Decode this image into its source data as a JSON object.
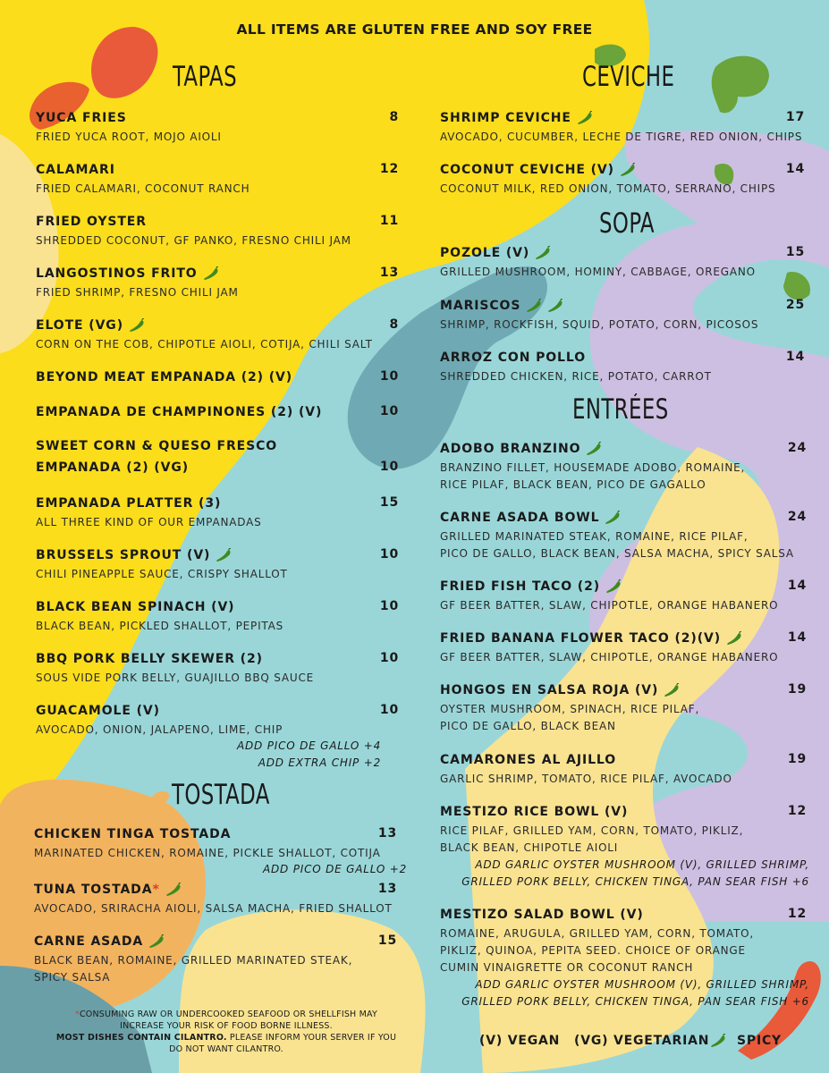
{
  "header": "ALL ITEMS ARE GLUTEN FREE AND SOY FREE",
  "colors": {
    "background_teal": "#9ad6d8",
    "yellow": "#fbdd1c",
    "lavender": "#cdbfe1",
    "pale_yellow": "#f9e391",
    "orange": "#f2b35f",
    "red_orange": "#e95a3a",
    "green": "#6aa43a",
    "pepper_green": "#3f8a1f"
  },
  "icons": {
    "spicy": "green-chili-pepper-icon"
  },
  "sections": {
    "tapas": {
      "title": "TAPAS",
      "items": [
        {
          "name": "YUCA FRIES",
          "desc": "FRIED YUCA ROOT, MOJO AIOLI",
          "price": "8"
        },
        {
          "name": "CALAMARI",
          "desc": "FRIED CALAMARI, COCONUT RANCH",
          "price": "12"
        },
        {
          "name": "FRIED OYSTER",
          "desc": "SHREDDED COCONUT, GF PANKO, FRESNO CHILI JAM",
          "price": "11"
        },
        {
          "name": "LANGOSTINOS FRITO",
          "desc": "FRIED SHRIMP, FRESNO CHILI JAM",
          "price": "13",
          "spicy": 1
        },
        {
          "name": "ELOTE (VG)",
          "desc": "CORN ON THE COB, CHIPOTLE AIOLI, COTIJA, CHILI SALT",
          "price": "8",
          "spicy": 1
        },
        {
          "name": "BEYOND MEAT EMPANADA (2) (V)",
          "desc": "",
          "price": "10"
        },
        {
          "name": "EMPANADA DE CHAMPINONES (2) (V)",
          "desc": "",
          "price": "10"
        },
        {
          "name": "SWEET CORN & QUESO FRESCO",
          "name2": "EMPANADA (2) (VG)",
          "desc": "",
          "price": "10"
        },
        {
          "name": "EMPANADA PLATTER (3)",
          "desc": "ALL THREE KIND OF OUR EMPANADAS",
          "price": "15"
        },
        {
          "name": "BRUSSELS SPROUT (V)",
          "desc": "CHILI PINEAPPLE SAUCE, CRISPY SHALLOT",
          "price": "10",
          "spicy": 1
        },
        {
          "name": "BLACK BEAN SPINACH (V)",
          "desc": "BLACK BEAN, PICKLED SHALLOT, PEPITAS",
          "price": "10"
        },
        {
          "name": "BBQ PORK BELLY SKEWER (2)",
          "desc": "SOUS VIDE PORK BELLY, GUAJILLO BBQ SAUCE",
          "price": "10"
        },
        {
          "name": "GUACAMOLE (V)",
          "desc": "AVOCADO, ONION, JALAPENO, LIME, CHIP",
          "price": "10",
          "addons": [
            "ADD PICO DE GALLO +4",
            "ADD EXTRA CHIP +2"
          ]
        }
      ]
    },
    "tostada": {
      "title": "TOSTADA",
      "items": [
        {
          "name": "CHICKEN TINGA TOSTADA",
          "desc": "MARINATED CHICKEN, ROMAINE, PICKLE SHALLOT, COTIJA",
          "price": "13",
          "addons": [
            "ADD PICO DE GALLO +2"
          ]
        },
        {
          "name": "TUNA TOSTADA",
          "marker": "*",
          "desc": "AVOCADO, SRIRACHA AIOLI, SALSA MACHA, FRIED SHALLOT",
          "price": "13",
          "spicy": 1
        },
        {
          "name": "CARNE ASADA",
          "desc": "BLACK BEAN, ROMAINE, GRILLED MARINATED STEAK,",
          "desc2": "SPICY SALSA",
          "price": "15",
          "spicy": 1
        }
      ]
    },
    "ceviche": {
      "title": "CEVICHE",
      "items": [
        {
          "name": "SHRIMP CEVICHE",
          "desc": "AVOCADO, CUCUMBER, LECHE DE TIGRE, RED ONION, CHIPS",
          "price": "17",
          "spicy": 1
        },
        {
          "name": "COCONUT CEVICHE (V)",
          "desc": "COCONUT MILK, RED ONION, TOMATO, SERRANO, CHIPS",
          "price": "14",
          "spicy": 1
        }
      ]
    },
    "sopa": {
      "title": "SOPA",
      "items": [
        {
          "name": "POZOLE (V)",
          "desc": "GRILLED MUSHROOM, HOMINY, CABBAGE, OREGANO",
          "price": "15",
          "spicy": 1
        },
        {
          "name": "MARISCOS",
          "desc": "SHRIMP, ROCKFISH, SQUID, POTATO, CORN, PICOSOS",
          "price": "25",
          "spicy": 2
        },
        {
          "name": "ARROZ CON POLLO",
          "desc": "SHREDDED CHICKEN, RICE, POTATO, CARROT",
          "price": "14"
        }
      ]
    },
    "entrees": {
      "title": "ENTRÉES",
      "items": [
        {
          "name": "ADOBO BRANZINO",
          "desc": "BRANZINO FILLET, HOUSEMADE ADOBO, ROMAINE,",
          "desc2": "RICE PILAF, BLACK BEAN, PICO DE GAGALLO",
          "price": "24",
          "spicy": 1
        },
        {
          "name": "CARNE ASADA BOWL",
          "desc": "GRILLED MARINATED STEAK, ROMAINE, RICE PILAF,",
          "desc2": "PICO DE GALLO, BLACK BEAN, SALSA MACHA, SPICY SALSA",
          "price": "24",
          "spicy": 1
        },
        {
          "name": "FRIED FISH TACO (2)",
          "desc": "GF BEER BATTER, SLAW, CHIPOTLE, ORANGE HABANERO",
          "price": "14",
          "spicy": 1
        },
        {
          "name": "FRIED BANANA FLOWER TACO (2)(V)",
          "desc": "GF BEER BATTER, SLAW, CHIPOTLE, ORANGE HABANERO",
          "price": "14",
          "spicy": 1
        },
        {
          "name": "HONGOS EN SALSA ROJA (V)",
          "desc": "OYSTER MUSHROOM, SPINACH, RICE PILAF,",
          "desc2": "PICO DE GALLO, BLACK BEAN",
          "price": "19",
          "spicy": 1
        },
        {
          "name": "CAMARONES AL AJILLO",
          "desc": "GARLIC SHRIMP, TOMATO, RICE PILAF, AVOCADO",
          "price": "19"
        },
        {
          "name": "MESTIZO RICE BOWL (V)",
          "desc": "RICE PILAF, GRILLED YAM, CORN, TOMATO, PIKLIZ,",
          "desc2": "BLACK BEAN, CHIPOTLE AIOLI",
          "price": "12",
          "addons": [
            "ADD GARLIC OYSTER MUSHROOM (V), GRILLED SHRIMP,",
            "GRILLED PORK BELLY, CHICKEN TINGA, PAN SEAR FISH +6"
          ]
        },
        {
          "name": "MESTIZO SALAD BOWL (V)",
          "desc": "ROMAINE, ARUGULA, GRILLED YAM, CORN, TOMATO,",
          "desc2": "PIKLIZ, QUINOA, PEPITA SEED. CHOICE OF ORANGE",
          "desc3": "CUMIN VINAIGRETTE OR COCONUT RANCH",
          "price": "12",
          "addons": [
            "ADD GARLIC OYSTER MUSHROOM (V), GRILLED SHRIMP,",
            "GRILLED PORK BELLY, CHICKEN TINGA, PAN SEAR FISH +6"
          ]
        }
      ]
    }
  },
  "disclaimer": {
    "marker": "*",
    "line1": "CONSUMING RAW OR UNDERCOOKED SEAFOOD OR SHELLFISH MAY",
    "line2": "INCREASE YOUR RISK OF FOOD BORNE ILLNESS.",
    "bold": "MOST DISHES CONTAIN CILANTRO.",
    "line3": " PLEASE INFORM YOUR SERVER IF YOU",
    "line4": "DO NOT WANT CILANTRO."
  },
  "legend": {
    "vegan": "(V) VEGAN",
    "vegetarian": "(VG) VEGETARIAN",
    "spicy": "SPICY"
  }
}
